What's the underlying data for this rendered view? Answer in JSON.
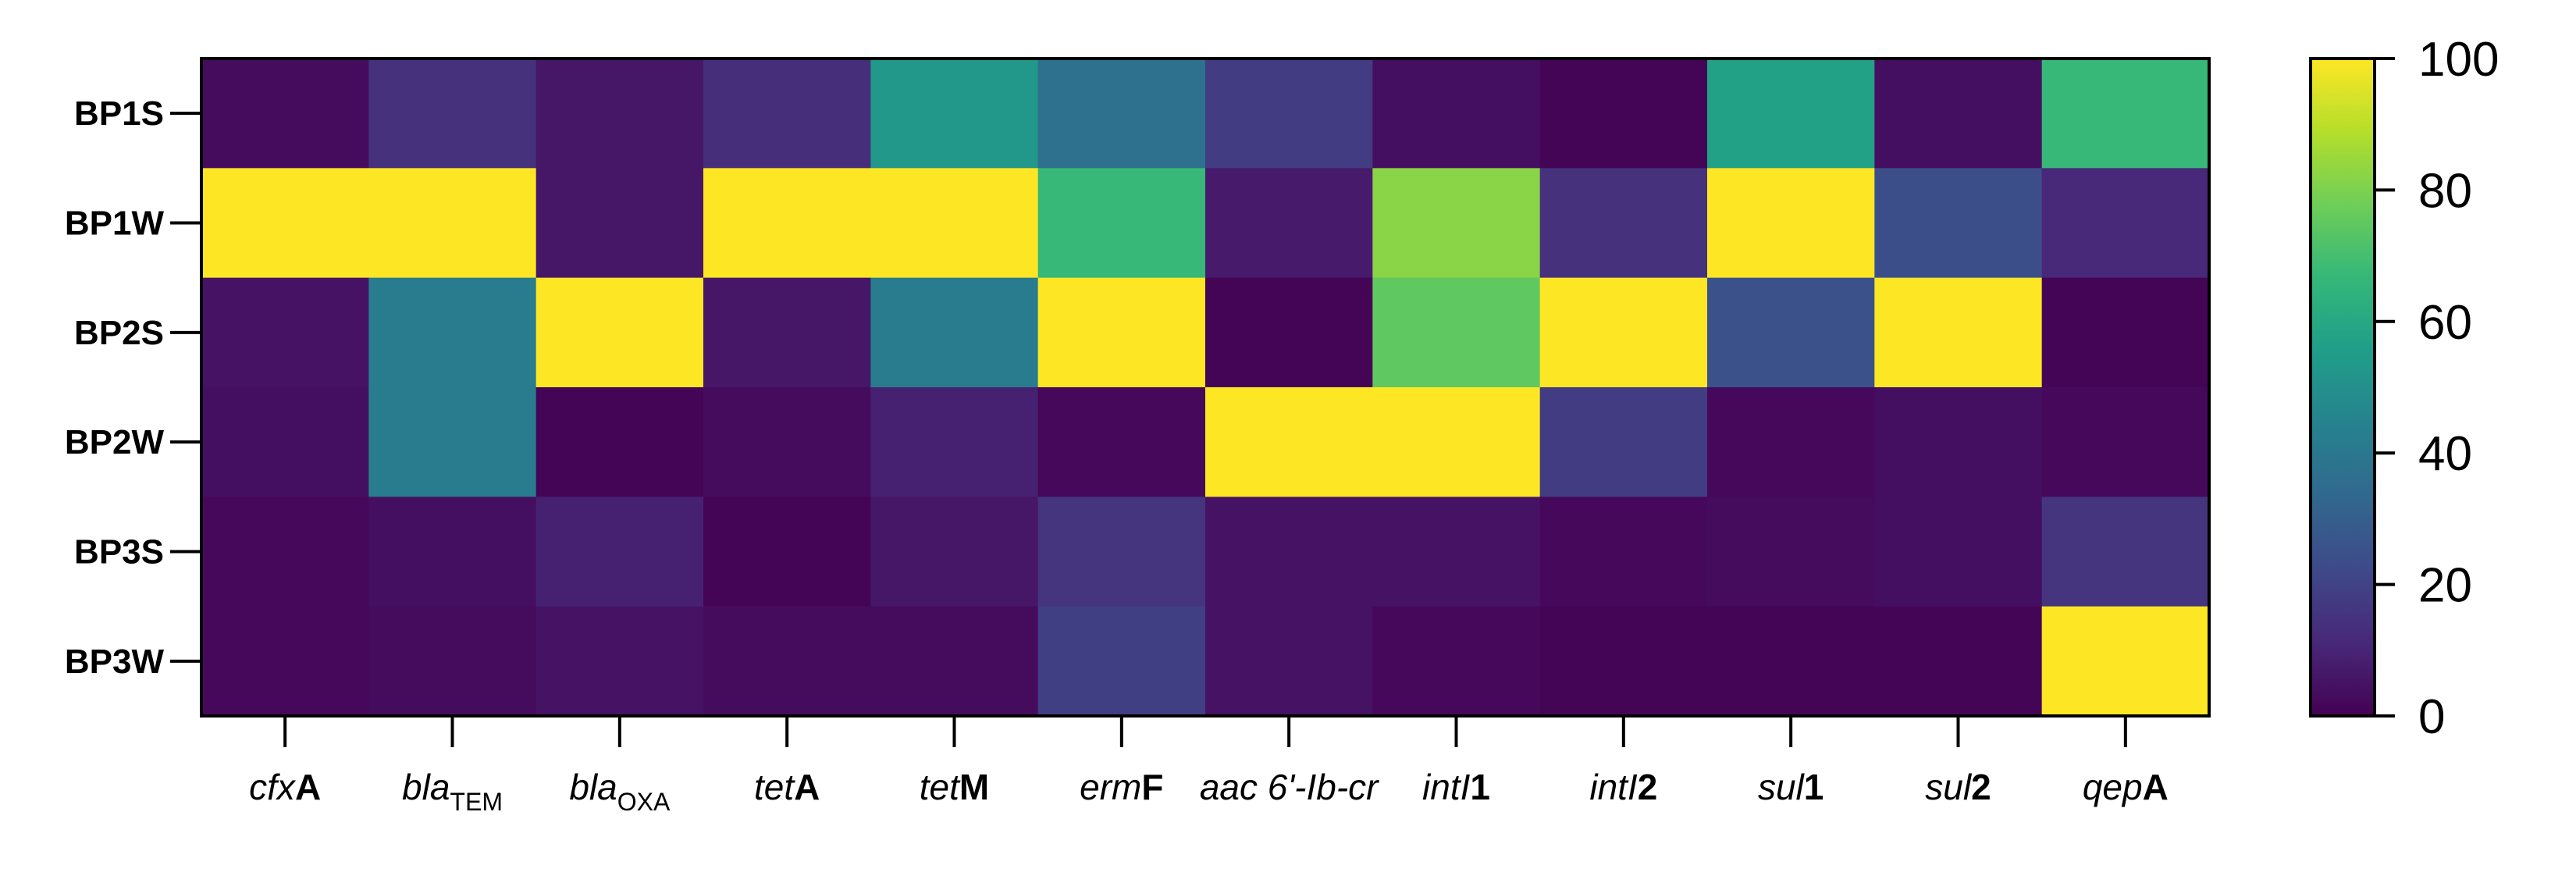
{
  "chart_data": {
    "type": "heatmap",
    "title": "",
    "xlabel": "",
    "ylabel": "",
    "rows": [
      "BP1S",
      "BP1W",
      "BP2S",
      "BP2W",
      "BP3S",
      "BP3W"
    ],
    "columns": [
      {
        "id": "cfxA",
        "parts": [
          {
            "t": "cfx",
            "i": true
          },
          {
            "t": "A",
            "b": true
          }
        ]
      },
      {
        "id": "blaTEM",
        "parts": [
          {
            "t": "bla",
            "i": true
          },
          {
            "t": "TEM",
            "sub": true
          }
        ]
      },
      {
        "id": "blaOXA",
        "parts": [
          {
            "t": "bla",
            "i": true
          },
          {
            "t": "OXA",
            "sub": true
          }
        ]
      },
      {
        "id": "tetA",
        "parts": [
          {
            "t": "tet",
            "i": true
          },
          {
            "t": "A",
            "b": true
          }
        ]
      },
      {
        "id": "tetM",
        "parts": [
          {
            "t": "tet",
            "i": true
          },
          {
            "t": "M",
            "b": true
          }
        ]
      },
      {
        "id": "ermF",
        "parts": [
          {
            "t": "erm",
            "i": true
          },
          {
            "t": "F",
            "b": true
          }
        ]
      },
      {
        "id": "aac6-Ib-cr",
        "parts": [
          {
            "t": "aac 6'-Ib-cr",
            "i": true
          }
        ]
      },
      {
        "id": "intI1",
        "parts": [
          {
            "t": "intI",
            "i": true
          },
          {
            "t": "1",
            "b": true
          }
        ]
      },
      {
        "id": "intI2",
        "parts": [
          {
            "t": "intI",
            "i": true
          },
          {
            "t": "2",
            "b": true
          }
        ]
      },
      {
        "id": "sul1",
        "parts": [
          {
            "t": "sul",
            "i": true
          },
          {
            "t": "1",
            "b": true
          }
        ]
      },
      {
        "id": "sul2",
        "parts": [
          {
            "t": "sul",
            "i": true
          },
          {
            "t": "2",
            "b": true
          }
        ]
      },
      {
        "id": "qepA",
        "parts": [
          {
            "t": "qep",
            "i": true
          },
          {
            "t": "A",
            "b": true
          }
        ]
      }
    ],
    "values": [
      [
        3,
        14,
        6,
        13,
        53,
        37,
        18,
        4,
        1,
        57,
        4,
        67
      ],
      [
        100,
        100,
        6,
        100,
        100,
        67,
        7,
        82,
        14,
        100,
        24,
        11
      ],
      [
        5,
        42,
        100,
        6,
        42,
        100,
        1,
        75,
        100,
        25,
        100,
        1
      ],
      [
        4,
        42,
        1,
        3,
        9,
        2,
        100,
        100,
        18,
        2,
        4,
        2
      ],
      [
        2,
        4,
        9,
        1,
        6,
        15,
        5,
        5,
        2,
        3,
        4,
        15
      ],
      [
        2,
        3,
        5,
        3,
        3,
        19,
        5,
        2,
        1,
        1,
        1,
        100
      ]
    ],
    "colorbar": {
      "min": 0,
      "max": 100,
      "ticks": [
        0,
        20,
        40,
        60,
        80,
        100
      ],
      "colormap": "viridis",
      "stops": [
        "#440154",
        "#482878",
        "#3e4989",
        "#31688e",
        "#26828e",
        "#1f9e89",
        "#35b779",
        "#6ece58",
        "#b5de2b",
        "#fde725"
      ]
    },
    "grid": false,
    "legend": "colorbar-right"
  }
}
